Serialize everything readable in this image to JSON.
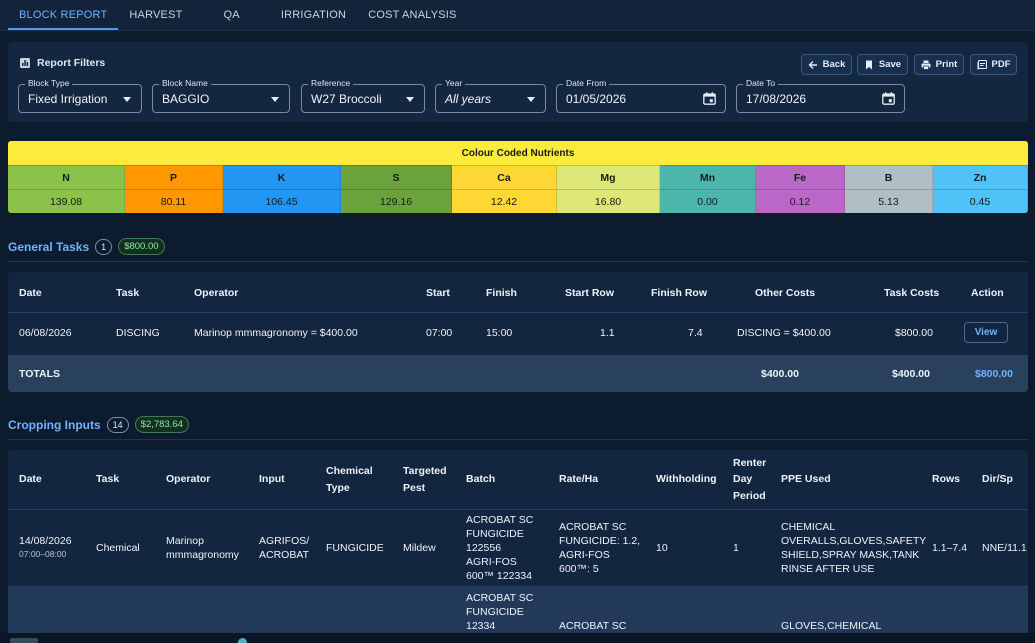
{
  "tabs": [
    "BLOCK REPORT",
    "HARVEST",
    "QA",
    "IRRIGATION",
    "COST ANALYSIS"
  ],
  "filters": {
    "title": "Report Filters",
    "buttons": {
      "back": "Back",
      "save": "Save",
      "print": "Print",
      "pdf": "PDF"
    },
    "block_type": {
      "label": "Block Type",
      "value": "Fixed Irrigation"
    },
    "block_name": {
      "label": "Block Name",
      "value": "BAGGIO"
    },
    "reference": {
      "label": "Reference",
      "value": "W27 Broccoli"
    },
    "year": {
      "label": "Year",
      "value": "All years"
    },
    "date_from": {
      "label": "Date From",
      "value": "01/05/2026"
    },
    "date_to": {
      "label": "Date To",
      "value": "17/08/2026"
    }
  },
  "nutrients": {
    "title": "Colour Coded Nutrients",
    "items": [
      {
        "name": "N",
        "value": "139.08",
        "color": "#8bc34a"
      },
      {
        "name": "P",
        "value": "80.11",
        "color": "#ff9800"
      },
      {
        "name": "K",
        "value": "106.45",
        "color": "#2196f3"
      },
      {
        "name": "S",
        "value": "129.16",
        "color": "#6aa23b"
      },
      {
        "name": "Ca",
        "value": "12.42",
        "color": "#fdd835"
      },
      {
        "name": "Mg",
        "value": "16.80",
        "color": "#dce775"
      },
      {
        "name": "Mn",
        "value": "0.00",
        "color": "#4db6ac"
      },
      {
        "name": "Fe",
        "value": "0.12",
        "color": "#ba68c8"
      },
      {
        "name": "B",
        "value": "5.13",
        "color": "#b0bec5"
      },
      {
        "name": "Zn",
        "value": "0.45",
        "color": "#4fc3f7"
      }
    ]
  },
  "general_tasks": {
    "title": "General Tasks",
    "count": "1",
    "total_badge": "$800.00",
    "headers": {
      "date": "Date",
      "task": "Task",
      "operator": "Operator",
      "start": "Start",
      "finish": "Finish",
      "start_row": "Start Row",
      "finish_row": "Finish Row",
      "other_costs": "Other Costs",
      "task_costs": "Task Costs",
      "action": "Action"
    },
    "row": {
      "date": "06/08/2026",
      "task": "DISCING",
      "operator": "Marinop mmmagronomy = $400.00",
      "start": "07:00",
      "finish": "15:00",
      "start_row": "1.1",
      "finish_row": "7.4",
      "other_costs": "DISCING = $400.00",
      "task_costs": "$800.00",
      "action": "View"
    },
    "totals": {
      "label": "TOTALS",
      "col1": "$400.00",
      "col2": "$400.00",
      "col3": "$800.00"
    }
  },
  "cropping_inputs": {
    "title": "Cropping Inputs",
    "count": "14",
    "total_badge": "$2,783.64",
    "headers": {
      "date": "Date",
      "task": "Task",
      "operator": "Operator",
      "input": "Input",
      "chem1": "Chemical",
      "chem2": "Type",
      "pest1": "Targeted",
      "pest2": "Pest",
      "batch": "Batch",
      "rate": "Rate/Ha",
      "withholding": "Withholding",
      "renter1": "Renter",
      "renter2": "Day",
      "renter3": "Period",
      "ppe": "PPE Used",
      "rows": "Rows",
      "dir": "Dir/Sp"
    },
    "row1": {
      "date": "14/08/2026",
      "time": "07:00–08:00",
      "task": "Chemical",
      "operator1": "Marinop",
      "operator2": "mmmagronomy",
      "input1": "AGRIFOS/",
      "input2": "ACROBAT",
      "chem_type": "FUNGICIDE",
      "pest": "Mildew",
      "batch": [
        "ACROBAT SC",
        "FUNGICIDE",
        "122556",
        "AGRI-FOS",
        "600™ 122334"
      ],
      "rate": [
        "ACROBAT SC",
        "FUNGICIDE: 1.2,",
        "AGRI-FOS",
        "600™: 5"
      ],
      "withholding": "10",
      "renter": "1",
      "ppe": [
        "CHEMICAL",
        "OVERALLS,GLOVES,SAFETY",
        "SHIELD,SPRAY MASK,TANK",
        "RINSE AFTER USE"
      ],
      "rows": "1.1–7.4",
      "dir": "NNE/11.1"
    },
    "row2": {
      "batch": [
        "ACROBAT SC",
        "FUNGICIDE",
        "12334"
      ],
      "rate": [
        "ACROBAT SC"
      ],
      "ppe": [
        "GLOVES,CHEMICAL"
      ]
    }
  }
}
